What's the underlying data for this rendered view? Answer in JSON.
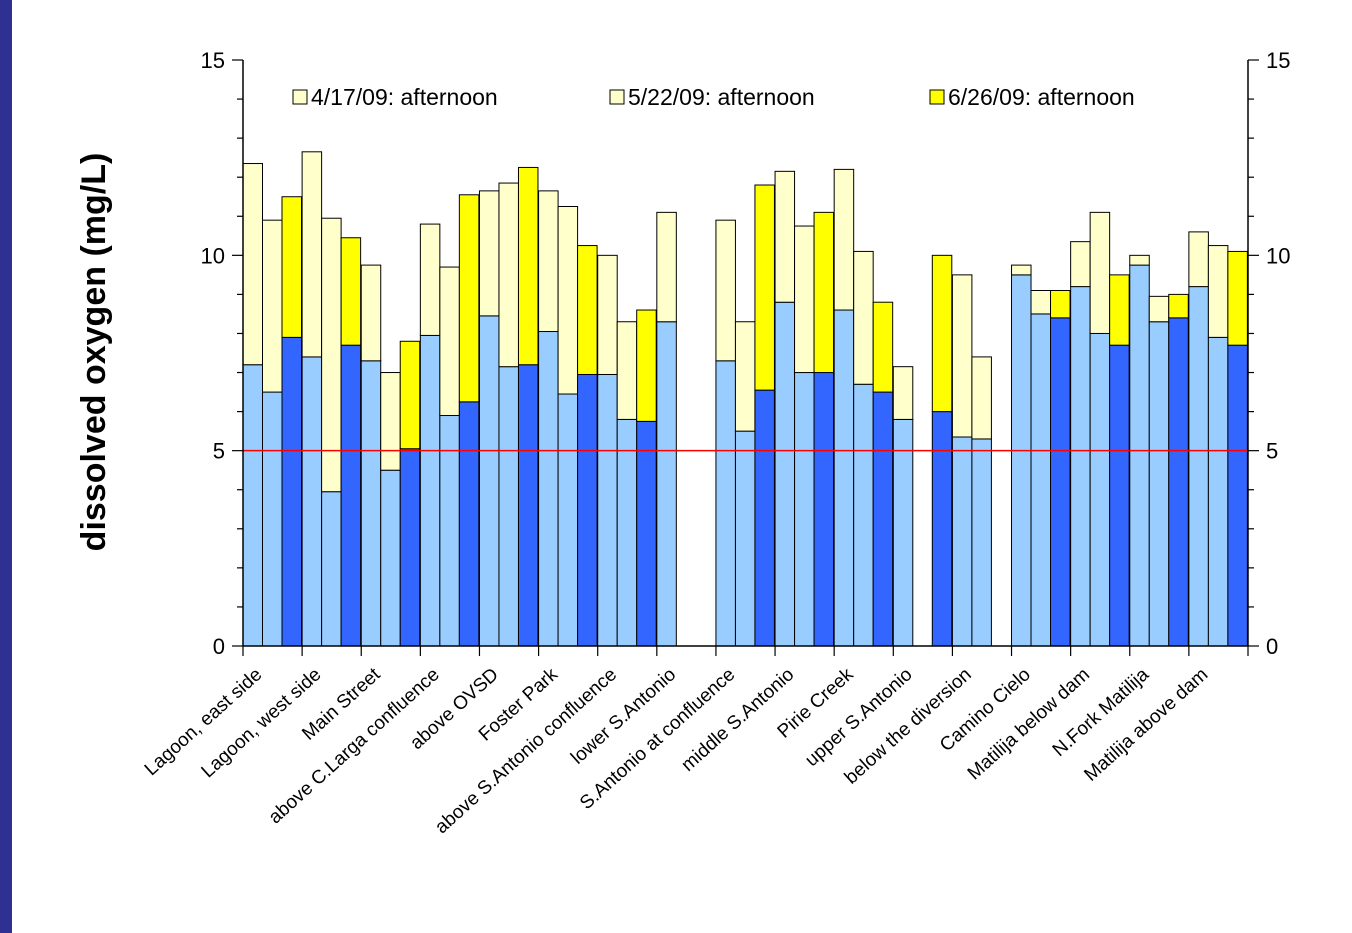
{
  "chart_data": {
    "type": "bar",
    "ylabel": "dissolved oxygen (mg/L)",
    "ylim": [
      0,
      15
    ],
    "yticks": [
      "0",
      "5",
      "10",
      "15"
    ],
    "reference_line": {
      "value": 5,
      "color": "#ff0000"
    },
    "categories": [
      "Lagoon, east side",
      "Lagoon, west side",
      "Main Street",
      "above C.Larga confluence",
      "above OVSD",
      "Foster Park",
      "above S.Antonio confluence",
      "lower S.Antonio",
      "S.Antonio at confluence",
      "middle S.Antonio",
      "Pirie Creek",
      "upper S.Antonio",
      "below the diversion",
      "Camino Cielo",
      "Matilija below dam",
      "N.Fork Matilija",
      "Matilija above dam"
    ],
    "series": [
      {
        "name": "4/17/09: afternoon",
        "colors": {
          "low": "#99ccff",
          "high": "#ffffcc"
        },
        "low": [
          7.2,
          7.4,
          7.3,
          7.95,
          8.45,
          8.05,
          6.95,
          8.3,
          7.3,
          8.8,
          8.6,
          5.8,
          5.35,
          9.5,
          9.2,
          9.75,
          9.2
        ],
        "high": [
          12.35,
          12.65,
          9.75,
          10.8,
          11.65,
          11.65,
          10.0,
          11.1,
          10.9,
          12.15,
          12.2,
          7.15,
          9.5,
          9.75,
          10.35,
          10.0,
          10.6
        ]
      },
      {
        "name": "5/22/09: afternoon",
        "colors": {
          "low": "#99ccff",
          "high": "#ffffcc"
        },
        "low": [
          6.5,
          3.95,
          4.5,
          5.9,
          7.15,
          6.45,
          5.8,
          null,
          5.5,
          7.0,
          6.7,
          null,
          5.3,
          8.5,
          8.0,
          8.3,
          7.9
        ],
        "high": [
          10.9,
          10.95,
          7.0,
          9.7,
          11.85,
          11.25,
          8.3,
          null,
          8.3,
          10.75,
          10.1,
          null,
          7.4,
          9.1,
          11.1,
          8.95,
          10.25
        ]
      },
      {
        "name": "6/26/09: afternoon",
        "colors": {
          "low": "#3366ff",
          "high": "#ffff00"
        },
        "low": [
          7.9,
          7.7,
          5.05,
          6.25,
          7.2,
          6.95,
          5.75,
          null,
          6.55,
          7.0,
          6.5,
          6.0,
          null,
          8.4,
          7.7,
          8.4,
          7.7
        ],
        "high": [
          11.5,
          10.45,
          7.8,
          11.55,
          12.25,
          10.25,
          8.6,
          null,
          11.8,
          11.1,
          8.8,
          10.0,
          null,
          9.1,
          9.5,
          9.0,
          10.1
        ]
      }
    ],
    "legend": {
      "position": "top",
      "entries": [
        "4/17/09: afternoon",
        "5/22/09: afternoon",
        "6/26/09: afternoon"
      ],
      "swatch_colors": [
        "#ffffcc",
        "#ffffcc",
        "#ffff00"
      ]
    },
    "grid": false
  }
}
